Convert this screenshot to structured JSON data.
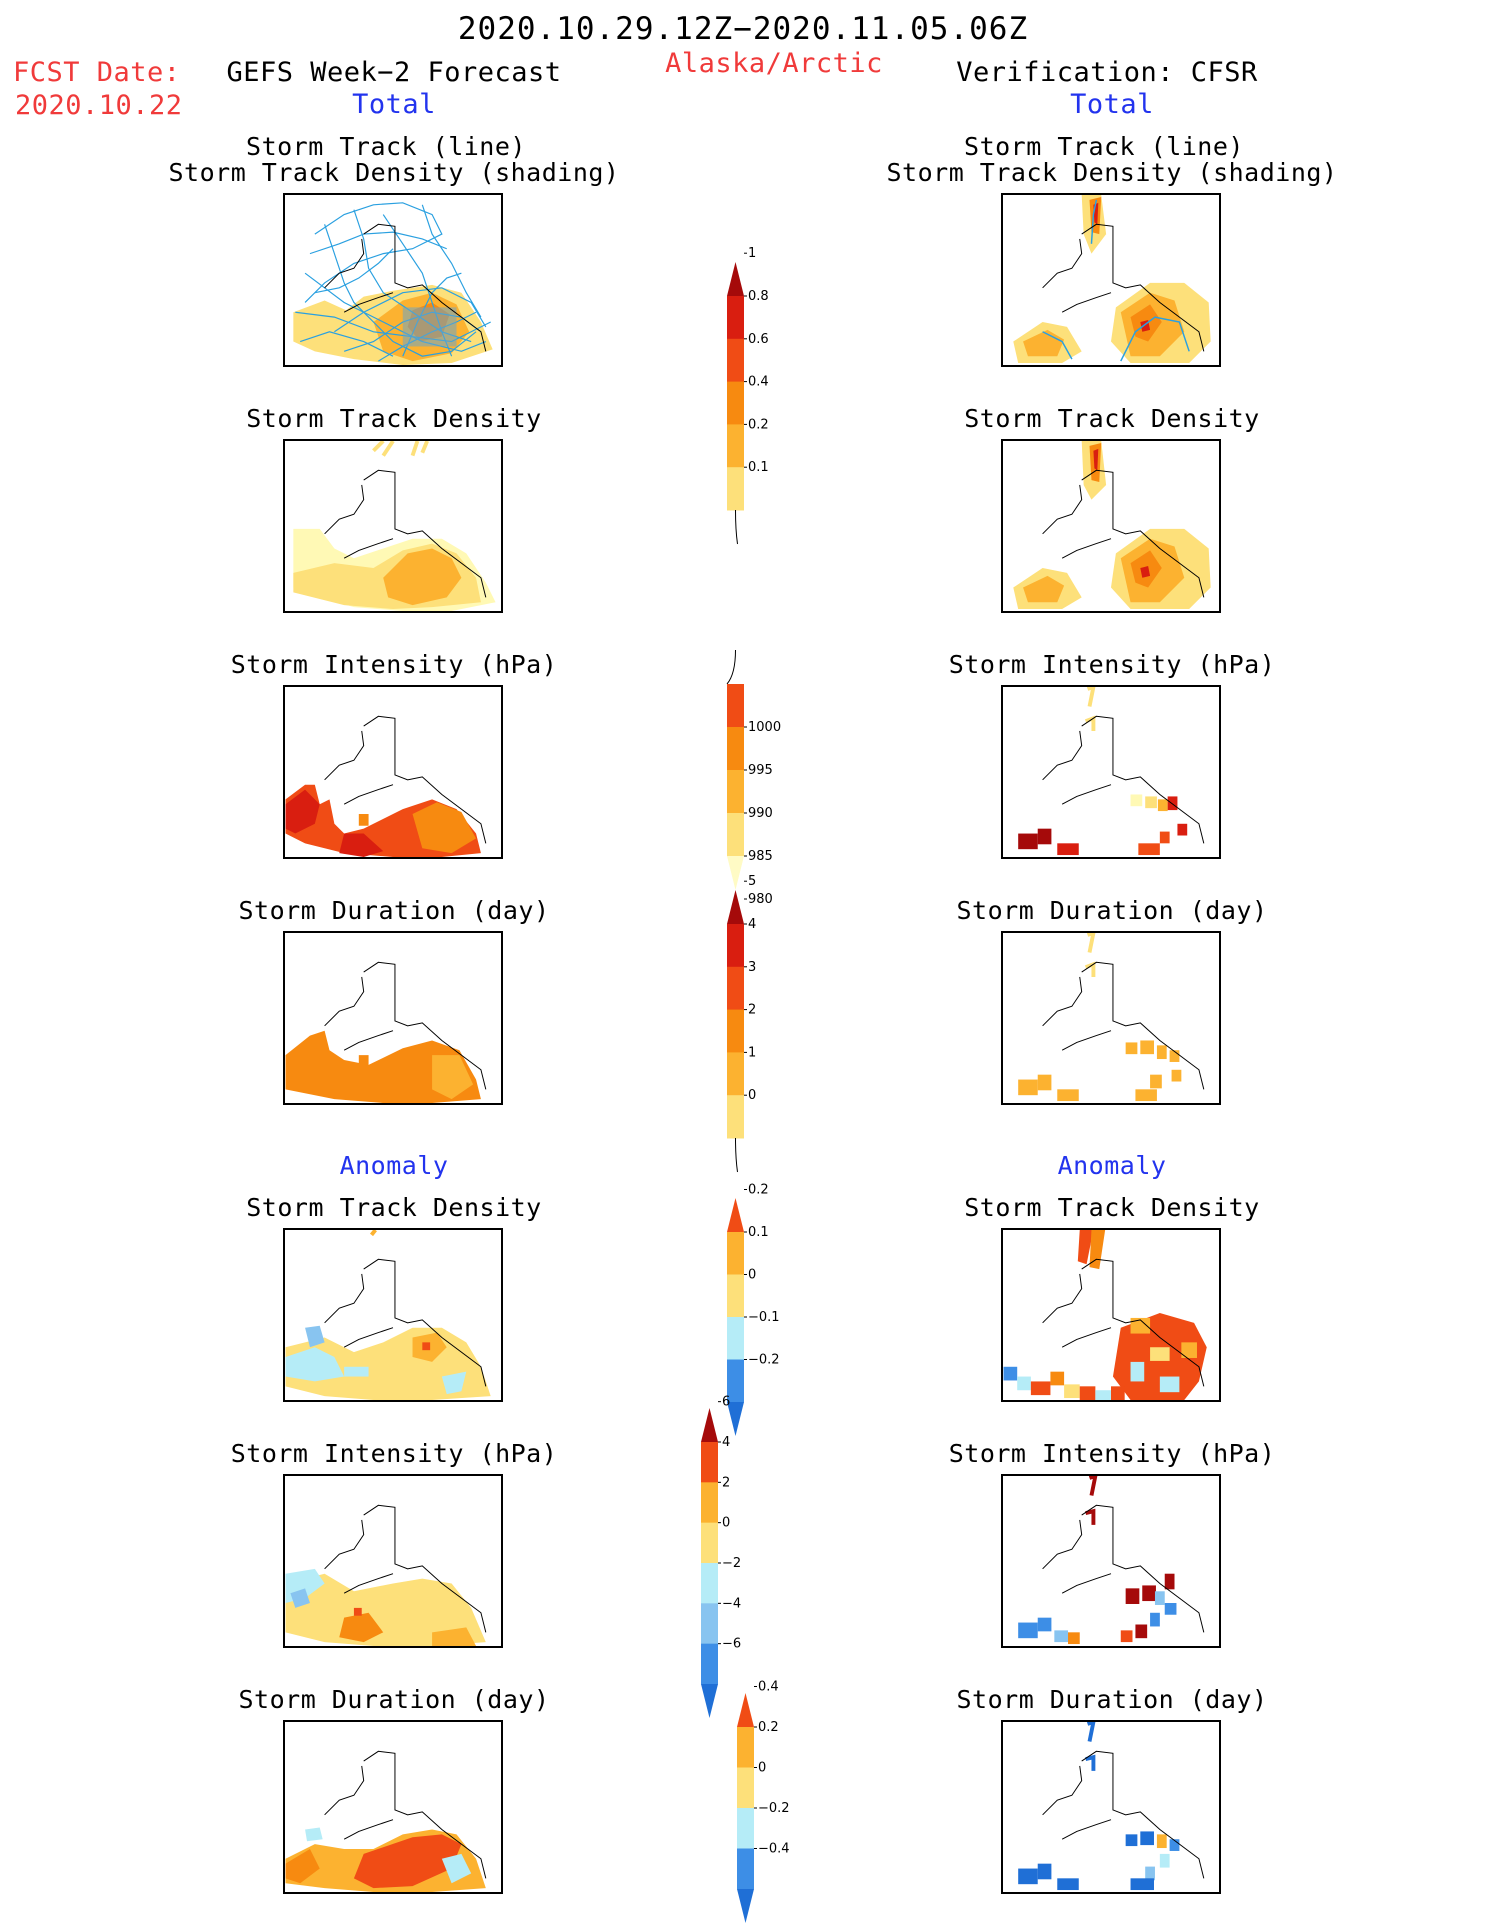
{
  "header": {
    "period": "2020.10.29.12Z−2020.11.05.06Z",
    "fcst_label": "FCST Date:",
    "fcst_date": "2020.10.22",
    "left_title": "GEFS Week−2 Forecast",
    "region": "Alaska/Arctic",
    "right_title": "Verification: CFSR",
    "total_left": "Total",
    "total_right": "Total",
    "anomaly_left": "Anomaly",
    "anomaly_right": "Anomaly"
  },
  "panel_titles": {
    "track_line": "Storm Track (line)",
    "track_shading": "Storm Track Density (shading)",
    "density": "Storm Track Density",
    "intensity": "Storm Intensity (hPa)",
    "duration": "Storm Duration (day)"
  },
  "colors": {
    "warm": [
      "#fff9b5",
      "#fde07a",
      "#fcb230",
      "#f78a10",
      "#f04c15",
      "#d91e10",
      "#a50a0a"
    ],
    "cool": [
      "#b5ecf7",
      "#88c4f0",
      "#3d8ee6",
      "#1f6fd6"
    ],
    "track_line": "#2aa0e0"
  },
  "chart_data": [
    {
      "type": "colorbar",
      "name": "total_density",
      "levels": [
        "0.1",
        "0.2",
        "0.4",
        "0.6",
        "0.8",
        "1"
      ],
      "colors": [
        "#fffbc5",
        "#fde07a",
        "#fcb230",
        "#f78a10",
        "#f04c15",
        "#d91e10",
        "#a50a0a"
      ]
    },
    {
      "type": "colorbar",
      "name": "total_intensity",
      "levels": [
        "1000",
        "995",
        "990",
        "985",
        "980"
      ],
      "colors": [
        "#fffbc5",
        "#fde07a",
        "#fcb230",
        "#f78a10",
        "#f04c15",
        "#a50a0a"
      ]
    },
    {
      "type": "colorbar",
      "name": "total_duration",
      "levels": [
        "0",
        "1",
        "2",
        "3",
        "4",
        "5"
      ],
      "colors": [
        "#fffbc5",
        "#fde07a",
        "#fcb230",
        "#f78a10",
        "#f04c15",
        "#d91e10",
        "#a50a0a"
      ]
    },
    {
      "type": "colorbar",
      "name": "anomaly_density",
      "levels": [
        "−0.2",
        "−0.1",
        "0",
        "0.1",
        "0.2"
      ],
      "colors": [
        "#1f6fd6",
        "#3d8ee6",
        "#b5ecf7",
        "#fde07a",
        "#fcb230",
        "#f04c15"
      ]
    },
    {
      "type": "colorbar",
      "name": "anomaly_intensity",
      "levels": [
        "−6",
        "−4",
        "−2",
        "0",
        "2",
        "4",
        "6"
      ],
      "colors": [
        "#1f6fd6",
        "#3d8ee6",
        "#88c4f0",
        "#b5ecf7",
        "#fde07a",
        "#fcb230",
        "#f04c15",
        "#a50a0a"
      ]
    },
    {
      "type": "colorbar",
      "name": "anomaly_duration",
      "levels": [
        "−0.4",
        "−0.2",
        "0",
        "0.2",
        "0.4"
      ],
      "colors": [
        "#1f6fd6",
        "#3d8ee6",
        "#b5ecf7",
        "#fde07a",
        "#fcb230",
        "#f04c15"
      ]
    }
  ]
}
